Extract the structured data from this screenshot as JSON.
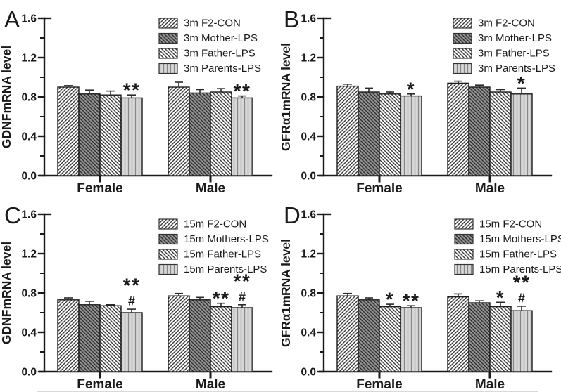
{
  "figure": {
    "background": "#ffffff",
    "description": "Four-panel grouped bar chart figure with significance annotations"
  },
  "style": {
    "axis_color": "#1a1a1a",
    "text_color": "#1a1a1a",
    "error_bar_color": "#2b2b2b",
    "bar_border_color": "#1c1c1c",
    "bar_patterns": {
      "diag_up_white": {
        "bg": "#ffffff",
        "line": "#3a3a3a",
        "type": "fwd"
      },
      "diag_down_gray": {
        "bg": "#949494",
        "line": "#2e2e2e",
        "type": "bwd"
      },
      "diag_down_white": {
        "bg": "#ffffff",
        "line": "#3a3a3a",
        "type": "bwd"
      },
      "vertical_light": {
        "bg": "#d8d8d8",
        "line": "#878787",
        "type": "vert"
      }
    }
  },
  "chart_data": [
    {
      "panel_label": "A",
      "type": "bar",
      "ylabel": "GDNFmRNA level",
      "xlabel": "",
      "ylim": [
        0,
        1.6
      ],
      "yticks": [
        0.0,
        0.4,
        0.8,
        1.2,
        1.6
      ],
      "minor_yticks": [
        0.2,
        0.6,
        1.0,
        1.4
      ],
      "grid": false,
      "legend_position": "upper-right",
      "categories": [
        "Female",
        "Male"
      ],
      "series": [
        {
          "name": "3m F2-CON",
          "pattern": "diag_up_white",
          "values": [
            0.9,
            0.9
          ],
          "errors": [
            0.015,
            0.05
          ]
        },
        {
          "name": "3m Mother-LPS",
          "pattern": "diag_down_gray",
          "values": [
            0.83,
            0.84
          ],
          "errors": [
            0.04,
            0.035
          ]
        },
        {
          "name": "3m Father-LPS",
          "pattern": "diag_down_white",
          "values": [
            0.82,
            0.85
          ],
          "errors": [
            0.04,
            0.035
          ]
        },
        {
          "name": "3m Parents-LPS",
          "pattern": "vertical_light",
          "values": [
            0.79,
            0.79
          ],
          "errors": [
            0.03,
            0.02
          ]
        }
      ],
      "annotations": [
        {
          "category": 0,
          "series": 3,
          "lines": [
            "**"
          ]
        },
        {
          "category": 1,
          "series": 3,
          "lines": [
            "**"
          ]
        }
      ]
    },
    {
      "panel_label": "B",
      "type": "bar",
      "ylabel": "GFRα1mRNA level",
      "xlabel": "",
      "ylim": [
        0,
        1.6
      ],
      "yticks": [
        0.0,
        0.4,
        0.8,
        1.2,
        1.6
      ],
      "minor_yticks": [
        0.2,
        0.6,
        1.0,
        1.4
      ],
      "grid": false,
      "legend_position": "upper-right",
      "categories": [
        "Female",
        "Male"
      ],
      "series": [
        {
          "name": "3m F2-CON",
          "pattern": "diag_up_white",
          "values": [
            0.91,
            0.94
          ],
          "errors": [
            0.02,
            0.02
          ]
        },
        {
          "name": "3m Mother-LPS",
          "pattern": "diag_down_gray",
          "values": [
            0.85,
            0.9
          ],
          "errors": [
            0.04,
            0.02
          ]
        },
        {
          "name": "3m Father-LPS",
          "pattern": "diag_down_white",
          "values": [
            0.83,
            0.85
          ],
          "errors": [
            0.02,
            0.025
          ]
        },
        {
          "name": "3m Parents-LPS",
          "pattern": "vertical_light",
          "values": [
            0.81,
            0.83
          ],
          "errors": [
            0.02,
            0.06
          ]
        }
      ],
      "annotations": [
        {
          "category": 0,
          "series": 3,
          "lines": [
            "*"
          ]
        },
        {
          "category": 1,
          "series": 3,
          "lines": [
            "*"
          ]
        }
      ]
    },
    {
      "panel_label": "C",
      "type": "bar",
      "ylabel": "GDNFmRNA level",
      "xlabel": "",
      "ylim": [
        0,
        1.6
      ],
      "yticks": [
        0.0,
        0.4,
        0.8,
        1.2,
        1.6
      ],
      "minor_yticks": [
        0.2,
        0.6,
        1.0,
        1.4
      ],
      "grid": false,
      "legend_position": "upper-right",
      "categories": [
        "Female",
        "Male"
      ],
      "series": [
        {
          "name": "15m F2-CON",
          "pattern": "diag_up_white",
          "values": [
            0.73,
            0.77
          ],
          "errors": [
            0.02,
            0.025
          ]
        },
        {
          "name": "15m Mothers-LPS",
          "pattern": "diag_down_gray",
          "values": [
            0.68,
            0.73
          ],
          "errors": [
            0.035,
            0.025
          ]
        },
        {
          "name": "15m Father-LPS",
          "pattern": "diag_down_white",
          "values": [
            0.67,
            0.66
          ],
          "errors": [
            0.01,
            0.035
          ]
        },
        {
          "name": "15m Parents-LPS",
          "pattern": "vertical_light",
          "values": [
            0.6,
            0.65
          ],
          "errors": [
            0.035,
            0.03
          ]
        }
      ],
      "annotations": [
        {
          "category": 0,
          "series": 3,
          "lines": [
            "**",
            "#"
          ]
        },
        {
          "category": 1,
          "series": 2,
          "lines": [
            "**"
          ]
        },
        {
          "category": 1,
          "series": 3,
          "lines": [
            "**",
            "#"
          ]
        }
      ]
    },
    {
      "panel_label": "D",
      "type": "bar",
      "ylabel": "GFRα1mRNA level",
      "xlabel": "",
      "ylim": [
        0,
        1.6
      ],
      "yticks": [
        0.0,
        0.4,
        0.8,
        1.2,
        1.6
      ],
      "minor_yticks": [
        0.2,
        0.6,
        1.0,
        1.4
      ],
      "grid": false,
      "legend_position": "upper-right",
      "categories": [
        "Female",
        "Male"
      ],
      "series": [
        {
          "name": "15m F2-CON",
          "pattern": "diag_up_white",
          "values": [
            0.77,
            0.76
          ],
          "errors": [
            0.025,
            0.03
          ]
        },
        {
          "name": "15m Mothers-LPS",
          "pattern": "diag_down_gray",
          "values": [
            0.73,
            0.7
          ],
          "errors": [
            0.02,
            0.02
          ]
        },
        {
          "name": "15m Father-LPS",
          "pattern": "diag_down_white",
          "values": [
            0.66,
            0.66
          ],
          "errors": [
            0.025,
            0.045
          ]
        },
        {
          "name": "15m Parents-LPS",
          "pattern": "vertical_light",
          "values": [
            0.65,
            0.62
          ],
          "errors": [
            0.02,
            0.045
          ]
        }
      ],
      "annotations": [
        {
          "category": 0,
          "series": 2,
          "lines": [
            "*"
          ]
        },
        {
          "category": 0,
          "series": 3,
          "lines": [
            "**"
          ]
        },
        {
          "category": 1,
          "series": 2,
          "lines": [
            "*"
          ]
        },
        {
          "category": 1,
          "series": 3,
          "lines": [
            "**",
            "#"
          ]
        }
      ]
    }
  ]
}
